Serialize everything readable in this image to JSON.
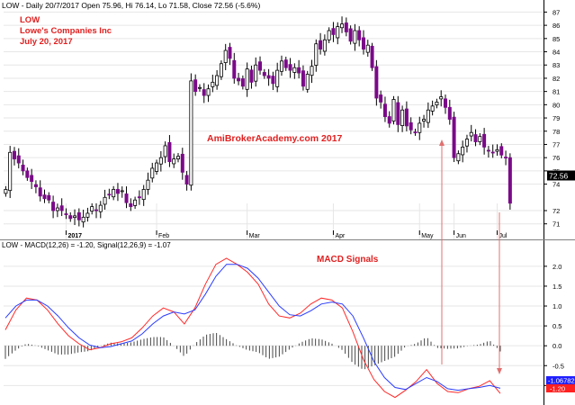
{
  "colors": {
    "candle": "#7a0a88",
    "candle_outline": "#000000",
    "macd_line": "#ff2a2a",
    "signal_line": "#2a3cff",
    "histogram": "#333333",
    "arrow": "#e07070",
    "annotation_red": "#e02020",
    "last_price_bg": "#000000",
    "macd_label_bg": "#2020ff",
    "signal_label_bg": "#ff2020"
  },
  "chart_data": [
    {
      "type": "candlestick",
      "header": "LOW - Daily 20/7/2017 Open 75.96, Hi 76.14, Lo 71.58, Close 72.56 (-5.6%)",
      "annotations": [
        "LOW",
        "Lowe's Companies Inc",
        "July 20, 2017"
      ],
      "watermark": "AmiBrokerAcademy.com  2017",
      "x_ticks": [
        "2017",
        "Feb",
        "Mar",
        "Apr",
        "May",
        "Jun",
        "Jul"
      ],
      "y_ticks": [
        71,
        72,
        74,
        75,
        76,
        77,
        78,
        79,
        80,
        81,
        82,
        83,
        84,
        85,
        86,
        87
      ],
      "ylim": [
        70.3,
        87.3
      ],
      "last_price": "72.56",
      "closes": [
        73.6,
        76.4,
        75.9,
        75.6,
        75.0,
        74.5,
        74.2,
        73.8,
        73.1,
        72.9,
        72.8,
        72.0,
        72.2,
        72.0,
        71.7,
        71.4,
        71.6,
        71.3,
        71.5,
        71.8,
        72.3,
        72.0,
        72.4,
        73.0,
        73.2,
        73.6,
        73.3,
        73.5,
        72.6,
        72.3,
        72.8,
        73.0,
        73.6,
        74.3,
        75.2,
        75.6,
        76.0,
        76.9,
        75.7,
        75.9,
        76.1,
        74.9,
        74.0,
        81.8,
        81.0,
        81.3,
        80.7,
        81.2,
        81.7,
        82.2,
        83.1,
        84.1,
        83.5,
        82.0,
        81.8,
        81.4,
        82.7,
        81.7,
        83.0,
        82.6,
        82.2,
        82.0,
        81.6,
        82.6,
        83.3,
        82.8,
        82.6,
        82.8,
        82.4,
        81.4,
        82.3,
        82.9,
        84.6,
        84.2,
        84.9,
        85.6,
        85.3,
        85.9,
        86.1,
        85.5,
        84.8,
        85.6,
        84.9,
        84.2,
        84.5,
        82.8,
        80.5,
        80.2,
        79.1,
        78.6,
        80.4,
        78.5,
        79.6,
        78.4,
        78.1,
        77.9,
        78.6,
        78.9,
        79.6,
        79.9,
        80.2,
        80.6,
        79.8,
        78.9,
        76.0,
        76.3,
        76.8,
        77.4,
        77.9,
        77.2,
        77.6,
        76.8,
        76.5,
        76.4,
        76.6,
        76.2,
        76.0,
        72.56
      ]
    },
    {
      "type": "line",
      "header": "LOW - MACD(12,26) = -1.20, Signal(12,26,9) = -1.07",
      "annotation": "MACD Signals",
      "y_ticks": [
        -1.0,
        -0.5,
        0.0,
        0.5,
        1.0,
        1.5,
        2.0
      ],
      "y_tick_labels": [
        "-1.0",
        "-0.5",
        "0.0",
        "0.5",
        "1.0",
        "1.5",
        "2.0"
      ],
      "ylim": [
        -1.4,
        2.45
      ],
      "marker_labels": [
        "-1.06782",
        "-1.20"
      ],
      "series": [
        {
          "values": [
            0.4,
            0.9,
            1.2,
            1.15,
            0.9,
            0.55,
            0.25,
            0.05,
            -0.1,
            -0.05,
            0.05,
            0.1,
            0.2,
            0.45,
            0.75,
            0.95,
            0.85,
            0.55,
            0.95,
            1.55,
            2.05,
            2.2,
            2.05,
            1.85,
            1.55,
            1.05,
            0.75,
            0.7,
            0.82,
            1.05,
            1.2,
            1.15,
            0.95,
            0.35,
            -0.35,
            -0.85,
            -1.15,
            -1.3,
            -1.12,
            -0.9,
            -0.6,
            -0.95,
            -1.15,
            -1.18,
            -1.08,
            -1.02,
            -0.88,
            -1.2
          ]
        },
        {
          "values": [
            0.7,
            1.0,
            1.15,
            1.15,
            1.0,
            0.75,
            0.45,
            0.2,
            0.02,
            -0.05,
            -0.02,
            0.05,
            0.12,
            0.3,
            0.55,
            0.75,
            0.85,
            0.8,
            0.9,
            1.3,
            1.75,
            2.05,
            2.05,
            1.95,
            1.7,
            1.35,
            1.0,
            0.78,
            0.75,
            0.88,
            1.05,
            1.1,
            1.05,
            0.75,
            0.2,
            -0.4,
            -0.8,
            -1.05,
            -1.1,
            -0.95,
            -0.8,
            -0.9,
            -1.08,
            -1.12,
            -1.08,
            -1.05,
            -1.0,
            -1.07
          ]
        }
      ]
    }
  ]
}
